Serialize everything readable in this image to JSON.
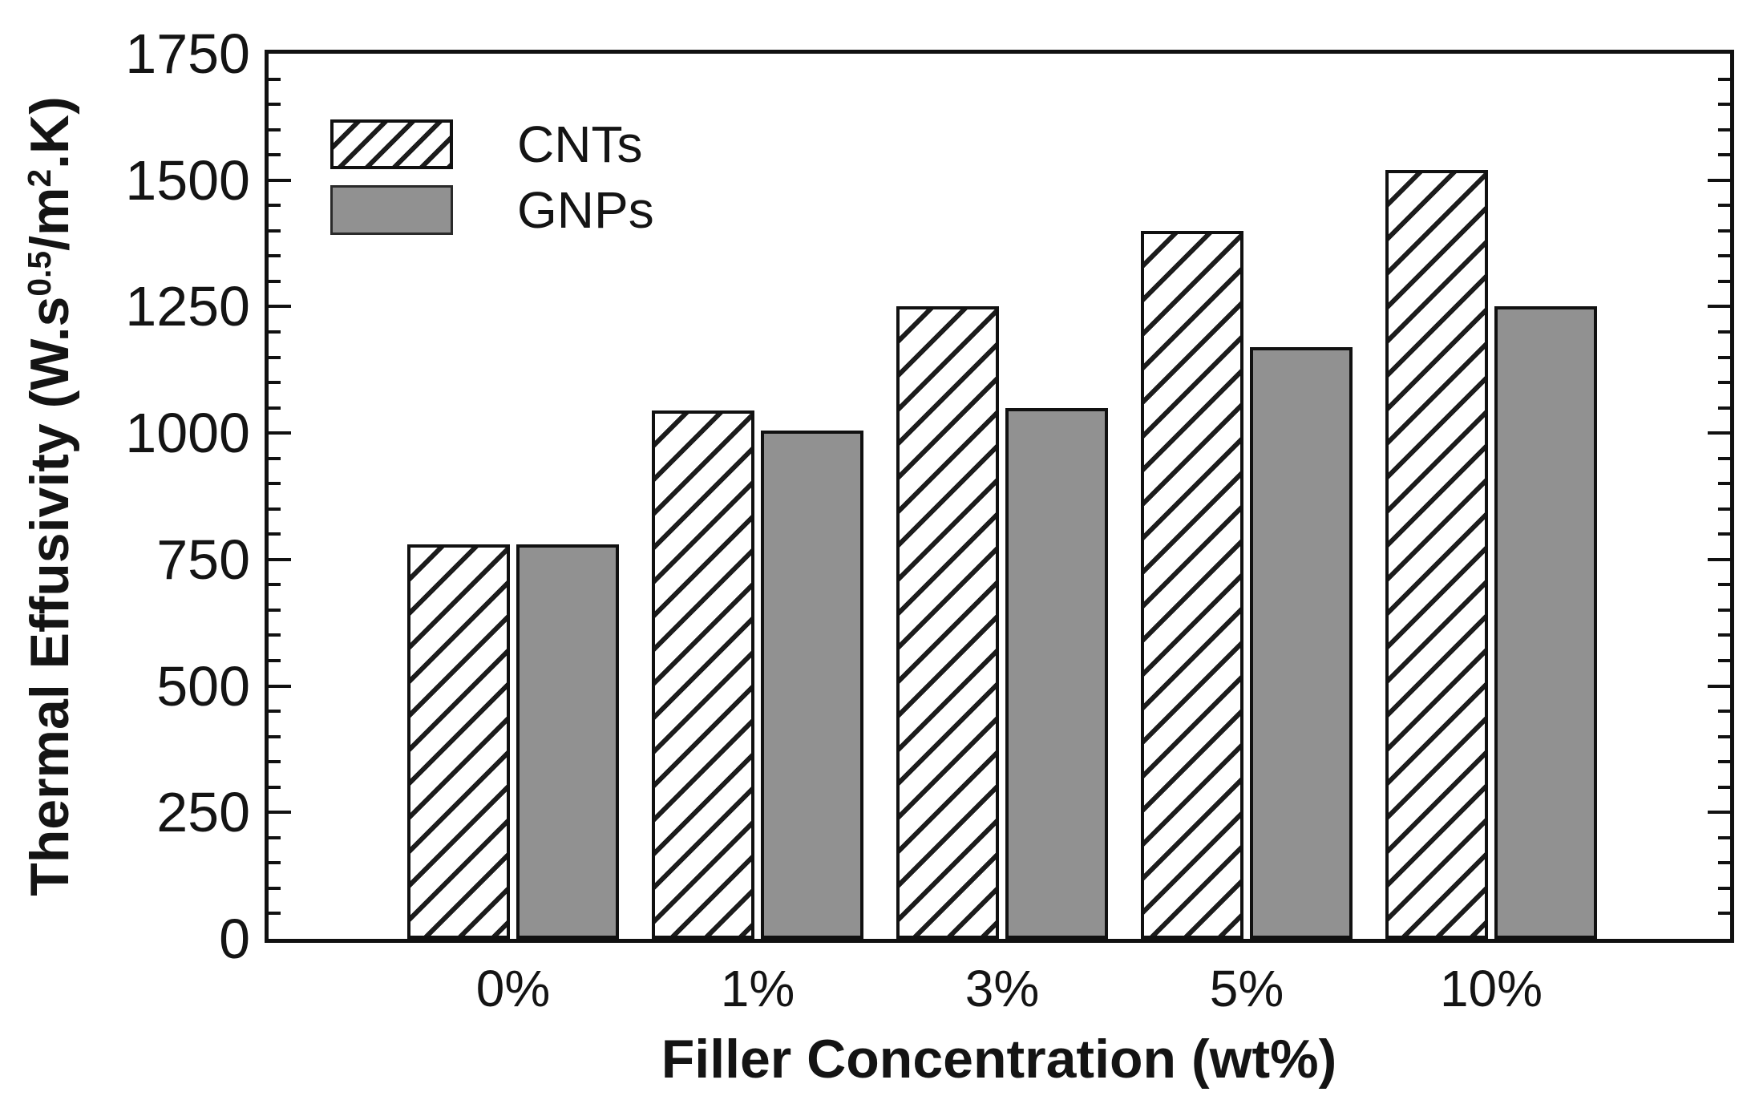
{
  "figure": {
    "background": "#ffffff",
    "ink_color": "#111111"
  },
  "chart_data": {
    "type": "bar",
    "title": "",
    "xlabel": "Filler Concentration (wt%)",
    "ylabel": "Thermal Effusivity (W.s^0.5/m^2.K)",
    "ylabel_parts": {
      "prefix": "Thermal Effusivity (W.s",
      "sup1": "0.5",
      "mid": "/m",
      "sup2": "2",
      "suffix": ".K)"
    },
    "categories": [
      "0%",
      "1%",
      "3%",
      "5%",
      "10%"
    ],
    "series": [
      {
        "name": "CNTs",
        "style": "hatched",
        "pattern": "diagonal-hatch",
        "fill": "#ffffff",
        "values": [
          780,
          1045,
          1250,
          1400,
          1520
        ]
      },
      {
        "name": "GNPs",
        "style": "solid-gray",
        "pattern": "solid",
        "fill": "#919191",
        "values": [
          780,
          1005,
          1050,
          1170,
          1250
        ]
      }
    ],
    "ylim": [
      0,
      1750
    ],
    "yticks_labeled": [
      0,
      250,
      500,
      750,
      1000,
      1250,
      1500,
      1750
    ],
    "ytick_major_step": 250,
    "ytick_minor_step": 50,
    "legend_position": "upper-left",
    "grid": false,
    "frame": true
  }
}
